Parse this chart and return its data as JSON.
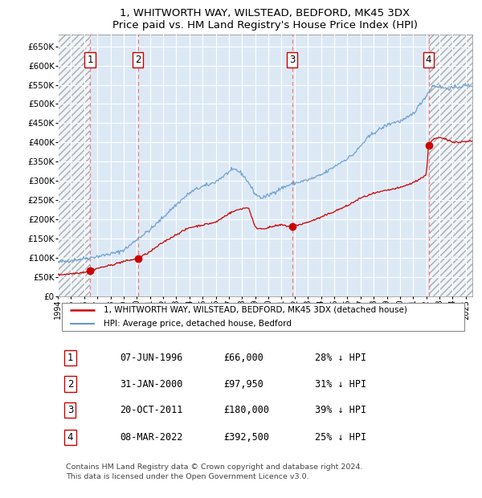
{
  "title1": "1, WHITWORTH WAY, WILSTEAD, BEDFORD, MK45 3DX",
  "title2": "Price paid vs. HM Land Registry's House Price Index (HPI)",
  "xlim": [
    1994.0,
    2025.5
  ],
  "ylim": [
    0,
    680000
  ],
  "yticks": [
    0,
    50000,
    100000,
    150000,
    200000,
    250000,
    300000,
    350000,
    400000,
    450000,
    500000,
    550000,
    600000,
    650000
  ],
  "ytick_labels": [
    "£0",
    "£50K",
    "£100K",
    "£150K",
    "£200K",
    "£250K",
    "£300K",
    "£350K",
    "£400K",
    "£450K",
    "£500K",
    "£550K",
    "£600K",
    "£650K"
  ],
  "xticks": [
    1994,
    1995,
    1996,
    1997,
    1998,
    1999,
    2000,
    2001,
    2002,
    2003,
    2004,
    2005,
    2006,
    2007,
    2008,
    2009,
    2010,
    2011,
    2012,
    2013,
    2014,
    2015,
    2016,
    2017,
    2018,
    2019,
    2020,
    2021,
    2022,
    2023,
    2024,
    2025
  ],
  "plot_bg": "#dce9f5",
  "hatch_bg": "#e8e8e8",
  "grid_color": "#ffffff",
  "red_color": "#cc0000",
  "blue_color": "#6699cc",
  "sale_dates": [
    1996.44,
    2000.08,
    2011.8,
    2022.18
  ],
  "sale_prices": [
    66000,
    97950,
    180000,
    392500
  ],
  "sale_labels": [
    "1",
    "2",
    "3",
    "4"
  ],
  "legend_line1": "1, WHITWORTH WAY, WILSTEAD, BEDFORD, MK45 3DX (detached house)",
  "legend_line2": "HPI: Average price, detached house, Bedford",
  "table_rows": [
    [
      "1",
      "07-JUN-1996",
      "£66,000",
      "28% ↓ HPI"
    ],
    [
      "2",
      "31-JAN-2000",
      "£97,950",
      "31% ↓ HPI"
    ],
    [
      "3",
      "20-OCT-2011",
      "£180,000",
      "39% ↓ HPI"
    ],
    [
      "4",
      "08-MAR-2022",
      "£392,500",
      "25% ↓ HPI"
    ]
  ],
  "footer": "Contains HM Land Registry data © Crown copyright and database right 2024.\nThis data is licensed under the Open Government Licence v3.0.",
  "hpi_years": [
    1994.0,
    1994.5,
    1995.0,
    1995.5,
    1996.0,
    1996.5,
    1997.0,
    1997.5,
    1998.0,
    1998.5,
    1999.0,
    1999.5,
    2000.0,
    2000.5,
    2001.0,
    2001.5,
    2002.0,
    2002.5,
    2003.0,
    2003.5,
    2004.0,
    2004.5,
    2005.0,
    2005.5,
    2006.0,
    2006.5,
    2007.0,
    2007.5,
    2008.0,
    2008.5,
    2009.0,
    2009.5,
    2010.0,
    2010.5,
    2011.0,
    2011.5,
    2012.0,
    2012.5,
    2013.0,
    2013.5,
    2014.0,
    2014.5,
    2015.0,
    2015.5,
    2016.0,
    2016.5,
    2017.0,
    2017.5,
    2018.0,
    2018.5,
    2019.0,
    2019.5,
    2020.0,
    2020.5,
    2021.0,
    2021.5,
    2022.0,
    2022.5,
    2023.0,
    2023.5,
    2024.0,
    2024.5,
    2025.0
  ],
  "hpi_prices": [
    88000,
    90000,
    93000,
    95000,
    98000,
    100000,
    103000,
    106000,
    110000,
    113000,
    120000,
    132000,
    148000,
    160000,
    172000,
    188000,
    205000,
    222000,
    238000,
    253000,
    268000,
    278000,
    285000,
    290000,
    298000,
    310000,
    323000,
    330000,
    318000,
    295000,
    265000,
    255000,
    262000,
    272000,
    281000,
    288000,
    294000,
    298000,
    302000,
    308000,
    315000,
    325000,
    337000,
    348000,
    358000,
    370000,
    390000,
    410000,
    425000,
    435000,
    445000,
    452000,
    455000,
    462000,
    475000,
    498000,
    522000,
    548000,
    545000,
    540000,
    542000,
    545000,
    548000
  ],
  "prop_years": [
    1994.0,
    1995.0,
    1996.0,
    1996.44,
    1997.0,
    1998.0,
    1999.0,
    2000.0,
    2000.08,
    2001.0,
    2002.0,
    2003.0,
    2004.0,
    2005.0,
    2006.0,
    2007.0,
    2007.5,
    2008.0,
    2008.5,
    2009.0,
    2009.5,
    2010.0,
    2010.5,
    2011.0,
    2011.5,
    2011.8,
    2012.0,
    2012.5,
    2013.0,
    2014.0,
    2015.0,
    2016.0,
    2017.0,
    2018.0,
    2019.0,
    2020.0,
    2021.0,
    2021.5,
    2022.0,
    2022.18,
    2022.5,
    2023.0,
    2023.5,
    2024.0,
    2024.5,
    2025.0
  ],
  "prop_prices": [
    55000,
    58000,
    62000,
    66000,
    72000,
    80000,
    90000,
    97000,
    97950,
    115000,
    140000,
    160000,
    178000,
    185000,
    192000,
    215000,
    222000,
    228000,
    230000,
    178000,
    175000,
    178000,
    182000,
    185000,
    182000,
    180000,
    183000,
    187000,
    192000,
    205000,
    220000,
    235000,
    255000,
    267000,
    275000,
    282000,
    295000,
    305000,
    315000,
    392500,
    408000,
    412000,
    408000,
    402000,
    400000,
    403000
  ]
}
